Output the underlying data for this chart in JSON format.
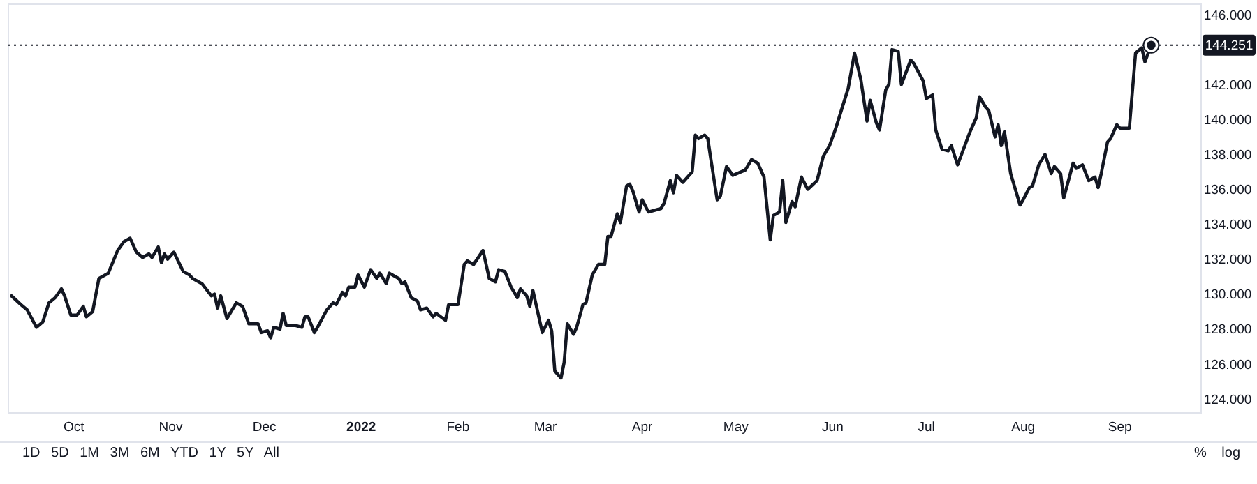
{
  "chart_data": {
    "type": "line",
    "x": [
      "2021-09-11",
      "2021-09-14",
      "2021-09-16",
      "2021-09-19",
      "2021-09-21",
      "2021-09-23",
      "2021-09-25",
      "2021-09-27",
      "2021-09-28",
      "2021-09-30",
      "2021-10-02",
      "2021-10-04",
      "2021-10-05",
      "2021-10-07",
      "2021-10-09",
      "2021-10-12",
      "2021-10-15",
      "2021-10-17",
      "2021-10-19",
      "2021-10-21",
      "2021-10-23",
      "2021-10-25",
      "2021-10-26",
      "2021-10-28",
      "2021-10-29",
      "2021-10-30",
      "2021-10-31",
      "2021-11-02",
      "2021-11-05",
      "2021-11-07",
      "2021-11-08",
      "2021-11-11",
      "2021-11-14",
      "2021-11-15",
      "2021-11-16",
      "2021-11-17",
      "2021-11-19",
      "2021-11-22",
      "2021-11-24",
      "2021-11-26",
      "2021-11-29",
      "2021-11-30",
      "2021-12-02",
      "2021-12-03",
      "2021-12-04",
      "2021-12-06",
      "2021-12-07",
      "2021-12-08",
      "2021-12-11",
      "2021-12-13",
      "2021-12-14",
      "2021-12-15",
      "2021-12-17",
      "2021-12-18",
      "2021-12-21",
      "2021-12-23",
      "2021-12-24",
      "2021-12-26",
      "2021-12-27",
      "2021-12-28",
      "2021-12-30",
      "2021-12-31",
      "2022-01-02",
      "2022-01-04",
      "2022-01-06",
      "2022-01-07",
      "2022-01-09",
      "2022-01-10",
      "2022-01-13",
      "2022-01-14",
      "2022-01-15",
      "2022-01-17",
      "2022-01-19",
      "2022-01-20",
      "2022-01-22",
      "2022-01-24",
      "2022-01-25",
      "2022-01-28",
      "2022-01-29",
      "2022-02-01",
      "2022-02-03",
      "2022-02-04",
      "2022-02-06",
      "2022-02-09",
      "2022-02-11",
      "2022-02-13",
      "2022-02-14",
      "2022-02-16",
      "2022-02-18",
      "2022-02-20",
      "2022-02-21",
      "2022-02-23",
      "2022-02-24",
      "2022-02-25",
      "2022-02-28",
      "2022-03-02",
      "2022-03-03",
      "2022-03-04",
      "2022-03-06",
      "2022-03-07",
      "2022-03-08",
      "2022-03-10",
      "2022-03-11",
      "2022-03-13",
      "2022-03-14",
      "2022-03-16",
      "2022-03-18",
      "2022-03-20",
      "2022-03-21",
      "2022-03-22",
      "2022-03-24",
      "2022-03-25",
      "2022-03-27",
      "2022-03-28",
      "2022-03-29",
      "2022-03-31",
      "2022-04-01",
      "2022-04-03",
      "2022-04-07",
      "2022-04-08",
      "2022-04-10",
      "2022-04-11",
      "2022-04-12",
      "2022-04-14",
      "2022-04-17",
      "2022-04-18",
      "2022-04-19",
      "2022-04-21",
      "2022-04-22",
      "2022-04-23",
      "2022-04-25",
      "2022-04-26",
      "2022-04-28",
      "2022-04-30",
      "2022-05-04",
      "2022-05-06",
      "2022-05-08",
      "2022-05-10",
      "2022-05-12",
      "2022-05-13",
      "2022-05-15",
      "2022-05-16",
      "2022-05-17",
      "2022-05-19",
      "2022-05-20",
      "2022-05-22",
      "2022-05-24",
      "2022-05-27",
      "2022-05-29",
      "2022-05-31",
      "2022-06-02",
      "2022-06-06",
      "2022-06-08",
      "2022-06-10",
      "2022-06-12",
      "2022-06-13",
      "2022-06-15",
      "2022-06-16",
      "2022-06-18",
      "2022-06-19",
      "2022-06-20",
      "2022-06-22",
      "2022-06-23",
      "2022-06-26",
      "2022-06-27",
      "2022-06-30",
      "2022-07-01",
      "2022-07-03",
      "2022-07-04",
      "2022-07-06",
      "2022-07-08",
      "2022-07-09",
      "2022-07-11",
      "2022-07-15",
      "2022-07-17",
      "2022-07-18",
      "2022-07-20",
      "2022-07-21",
      "2022-07-23",
      "2022-07-24",
      "2022-07-25",
      "2022-07-26",
      "2022-07-28",
      "2022-07-29",
      "2022-07-31",
      "2022-08-01",
      "2022-08-03",
      "2022-08-04",
      "2022-08-06",
      "2022-08-08",
      "2022-08-10",
      "2022-08-11",
      "2022-08-13",
      "2022-08-14",
      "2022-08-17",
      "2022-08-18",
      "2022-08-20",
      "2022-08-22",
      "2022-08-24",
      "2022-08-25",
      "2022-08-26",
      "2022-08-28",
      "2022-08-29",
      "2022-08-31",
      "2022-09-01",
      "2022-09-04",
      "2022-09-06",
      "2022-09-08",
      "2022-09-09",
      "2022-09-11"
    ],
    "series": [
      {
        "color": "#131722",
        "values": [
          129.9,
          129.4,
          129.1,
          128.1,
          128.4,
          129.5,
          129.8,
          130.3,
          129.9,
          128.8,
          128.8,
          129.3,
          128.7,
          129.0,
          130.9,
          131.2,
          132.5,
          133.0,
          133.2,
          132.4,
          132.1,
          132.3,
          132.1,
          132.7,
          131.8,
          132.3,
          132.0,
          132.4,
          131.3,
          131.1,
          130.9,
          130.6,
          129.9,
          130.0,
          129.2,
          129.9,
          128.6,
          129.5,
          129.3,
          128.3,
          128.3,
          127.8,
          127.9,
          127.5,
          128.1,
          128.0,
          128.9,
          128.2,
          128.2,
          128.1,
          128.7,
          128.7,
          127.8,
          128.1,
          129.1,
          129.5,
          129.4,
          130.1,
          129.9,
          130.4,
          130.4,
          131.1,
          130.4,
          131.4,
          130.9,
          131.2,
          130.6,
          131.2,
          130.9,
          130.6,
          130.7,
          129.8,
          129.6,
          129.1,
          129.2,
          128.7,
          128.9,
          128.5,
          129.4,
          129.4,
          131.7,
          131.9,
          131.7,
          132.5,
          130.9,
          130.7,
          131.4,
          131.3,
          130.4,
          129.8,
          130.3,
          129.9,
          129.3,
          130.2,
          127.8,
          128.5,
          127.9,
          125.6,
          125.2,
          126.1,
          128.3,
          127.7,
          128.1,
          129.4,
          129.5,
          131.1,
          131.7,
          131.7,
          133.3,
          133.3,
          134.6,
          134.1,
          136.2,
          136.3,
          135.9,
          134.7,
          135.4,
          134.7,
          134.9,
          135.2,
          136.5,
          135.8,
          136.8,
          136.4,
          137.0,
          139.1,
          138.9,
          139.1,
          138.9,
          137.7,
          135.4,
          135.6,
          137.3,
          136.8,
          137.1,
          137.7,
          137.5,
          136.7,
          133.1,
          134.5,
          134.7,
          136.5,
          134.1,
          135.3,
          135.0,
          136.7,
          136.0,
          136.5,
          137.9,
          138.5,
          139.5,
          141.8,
          143.8,
          142.3,
          139.9,
          141.1,
          139.8,
          139.4,
          141.7,
          142.0,
          144.0,
          143.9,
          142.0,
          143.4,
          143.2,
          142.2,
          141.2,
          141.4,
          139.4,
          138.3,
          138.2,
          138.5,
          137.4,
          139.3,
          140.1,
          141.3,
          140.7,
          140.5,
          139.0,
          139.7,
          138.5,
          139.3,
          136.9,
          136.3,
          135.1,
          135.4,
          136.1,
          136.2,
          137.4,
          138.0,
          136.9,
          137.3,
          136.9,
          135.5,
          137.5,
          137.2,
          137.4,
          136.5,
          136.7,
          136.1,
          136.9,
          138.7,
          138.9,
          139.7,
          139.5,
          139.5,
          143.8,
          144.1,
          143.3,
          144.251
        ]
      }
    ],
    "xlim": [
      "2021-09-10",
      "2022-09-27"
    ],
    "xticks": [
      {
        "value": "2021-10-01",
        "label": "Oct"
      },
      {
        "value": "2021-11-01",
        "label": "Nov"
      },
      {
        "value": "2021-12-01",
        "label": "Dec"
      },
      {
        "value": "2022-01-01",
        "label": "2022"
      },
      {
        "value": "2022-02-01",
        "label": "Feb"
      },
      {
        "value": "2022-03-01",
        "label": "Mar"
      },
      {
        "value": "2022-04-01",
        "label": "Apr"
      },
      {
        "value": "2022-05-01",
        "label": "May"
      },
      {
        "value": "2022-06-01",
        "label": "Jun"
      },
      {
        "value": "2022-07-01",
        "label": "Jul"
      },
      {
        "value": "2022-08-01",
        "label": "Aug"
      },
      {
        "value": "2022-09-01",
        "label": "Sep"
      }
    ],
    "ylim": [
      123.2,
      146.6
    ],
    "yticks": [
      {
        "value": 124,
        "label": "124.000"
      },
      {
        "value": 126,
        "label": "126.000"
      },
      {
        "value": 128,
        "label": "128.000"
      },
      {
        "value": 130,
        "label": "130.000"
      },
      {
        "value": 132,
        "label": "132.000"
      },
      {
        "value": 134,
        "label": "134.000"
      },
      {
        "value": 136,
        "label": "136.000"
      },
      {
        "value": 138,
        "label": "138.000"
      },
      {
        "value": 140,
        "label": "140.000"
      },
      {
        "value": 142,
        "label": "142.000"
      },
      {
        "value": 146,
        "label": "146.000"
      }
    ],
    "ref_lines": [
      {
        "axis": "y",
        "value": 144.251,
        "label": "144.251",
        "color": "#131722",
        "line_style": "dotted"
      }
    ],
    "annotations": [
      "1D 5D 1M 3M 6M YTD 1Y 5Y All",
      "% log"
    ]
  }
}
